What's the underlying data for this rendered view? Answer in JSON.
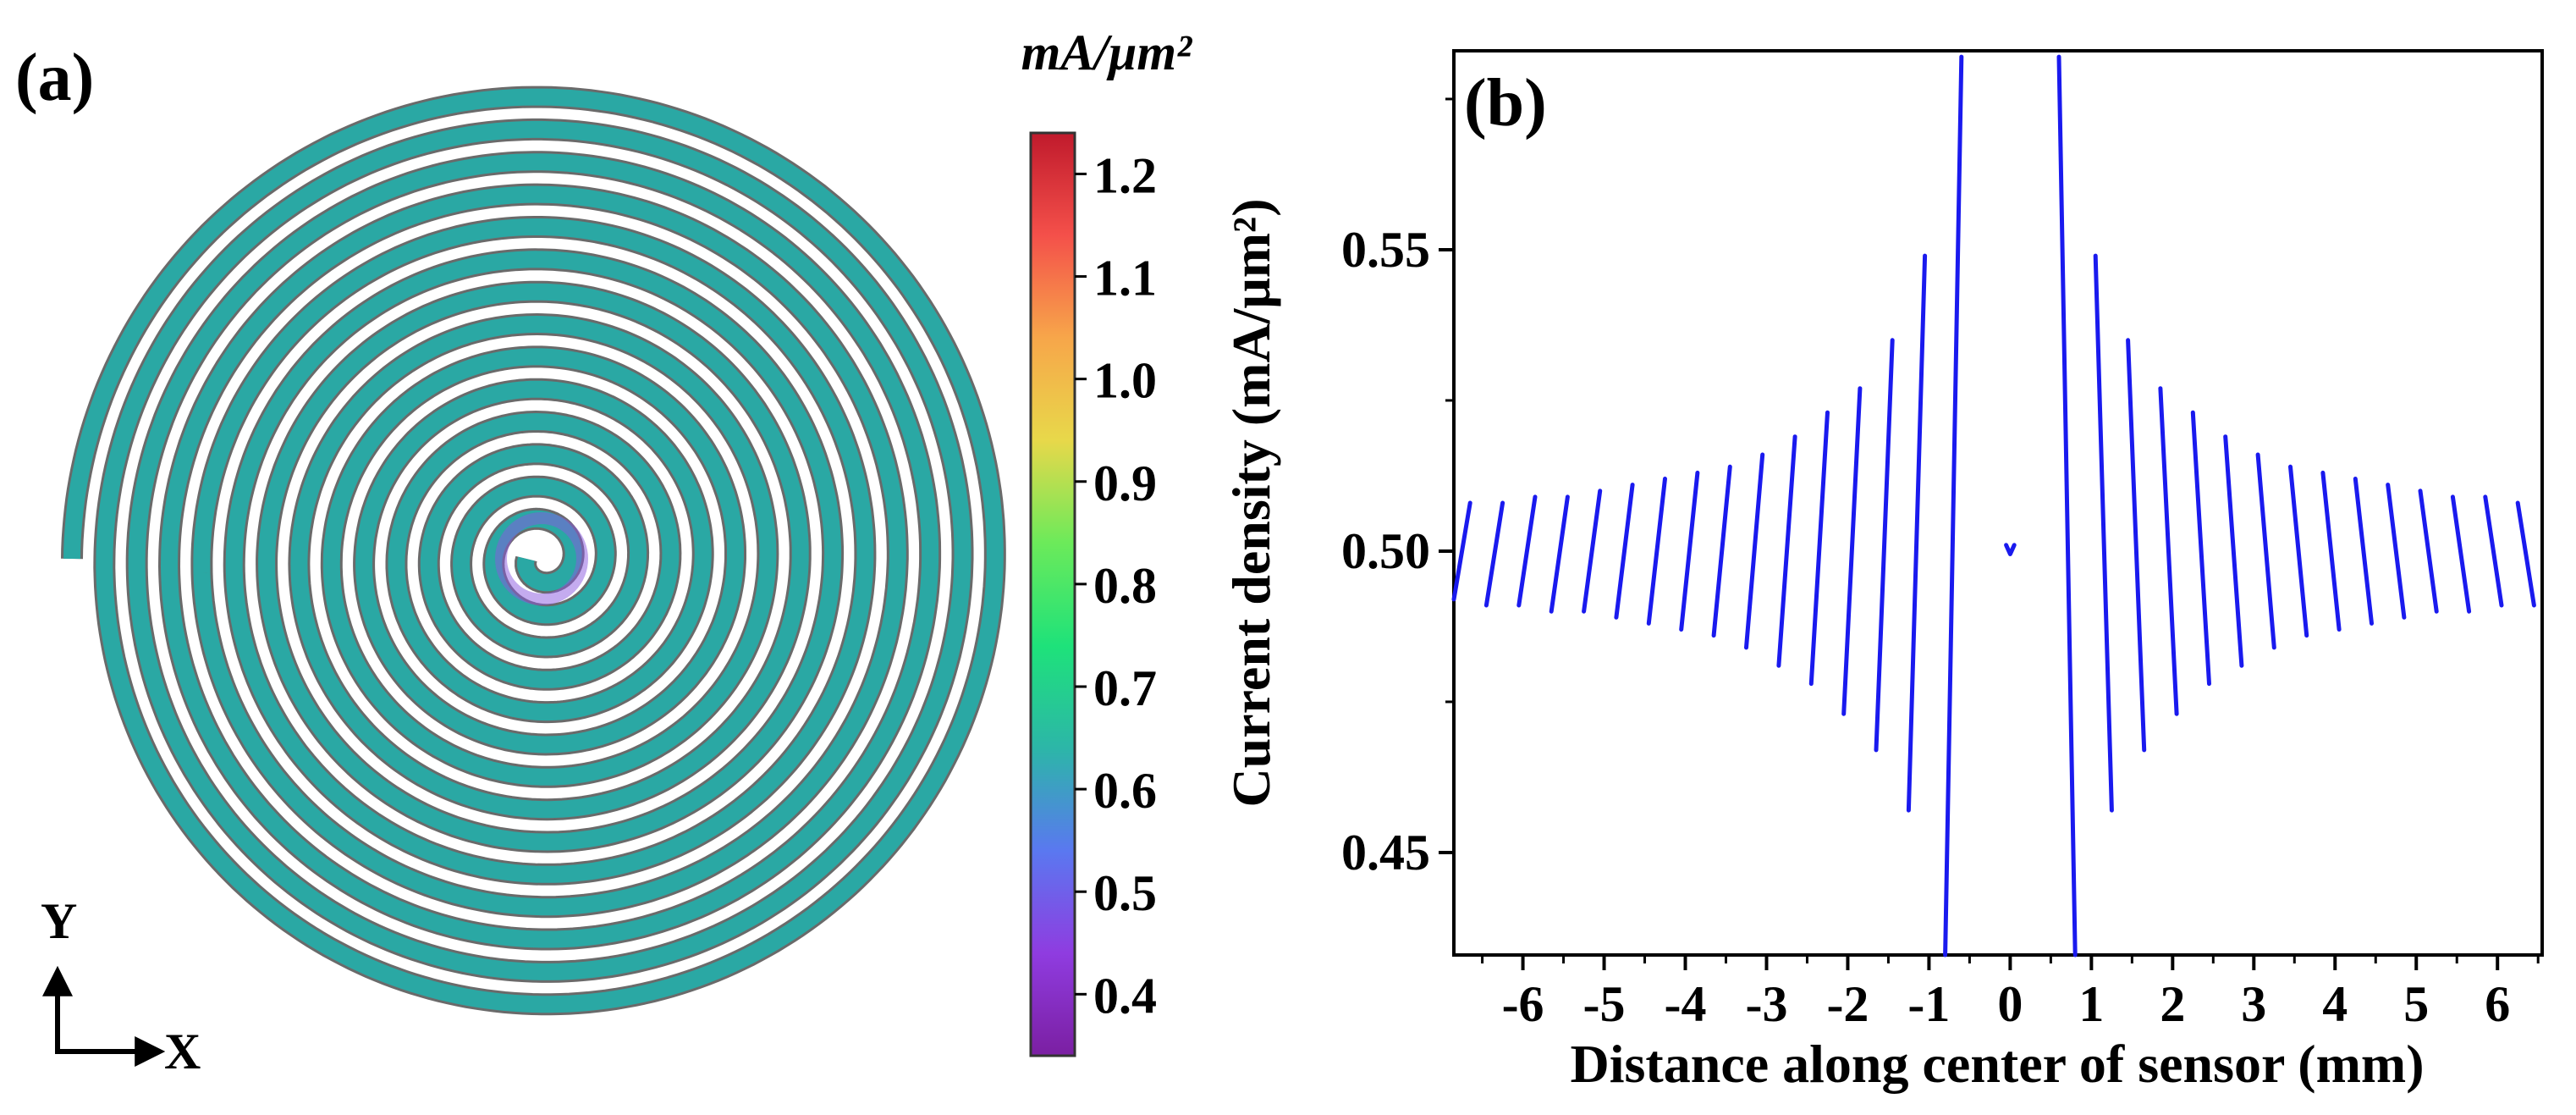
{
  "panel_a": {
    "label": "(a)",
    "colorbar": {
      "unit": "mA/μm²",
      "ticks": [
        "1.2",
        "1.1",
        "1.0",
        "0.9",
        "0.8",
        "0.7",
        "0.6",
        "0.5",
        "0.4"
      ],
      "min": 0.34,
      "max": 1.24,
      "colors": [
        "#7b1fa2",
        "#8f3ce0",
        "#5a78f0",
        "#2cb6a8",
        "#1ee27a",
        "#6cea5a",
        "#e8d84a",
        "#f7a64a",
        "#f4504a",
        "#c01a2c"
      ]
    },
    "axes": {
      "y": "Y",
      "x": "X"
    },
    "spiral": {
      "turns": 14,
      "fill_color": "#2aa8a4",
      "center_color": "#8a58e0"
    }
  },
  "chart_data": {
    "type": "line",
    "panel_label": "(b)",
    "title": "",
    "xlabel": "Distance along center of sensor (mm)",
    "ylabel": "Current density (mA/μm²)",
    "xlim": [
      -6.85,
      6.55
    ],
    "ylim": [
      0.433,
      0.583
    ],
    "xticks": [
      -6,
      -5,
      -4,
      -3,
      -2,
      -1,
      0,
      1,
      2,
      3,
      4,
      5,
      6
    ],
    "xtick_labels": [
      "-6",
      "-5",
      "-4",
      "-3",
      "-2",
      "-1",
      "0",
      "1",
      "2",
      "3",
      "4",
      "5",
      "6"
    ],
    "yticks": [
      0.45,
      0.5,
      0.55
    ],
    "ytick_labels": [
      "0.45",
      "0.50",
      "0.55"
    ],
    "series": [
      {
        "name": "Current density",
        "color": "#1a1aee",
        "segments": [
          [
            [
              -6.85,
              0.492
            ],
            [
              -6.65,
              0.508
            ]
          ],
          [
            [
              -6.45,
              0.491
            ],
            [
              -6.25,
              0.508
            ]
          ],
          [
            [
              -6.05,
              0.491
            ],
            [
              -5.85,
              0.509
            ]
          ],
          [
            [
              -5.65,
              0.49
            ],
            [
              -5.45,
              0.509
            ]
          ],
          [
            [
              -5.25,
              0.49
            ],
            [
              -5.05,
              0.51
            ]
          ],
          [
            [
              -4.85,
              0.489
            ],
            [
              -4.65,
              0.511
            ]
          ],
          [
            [
              -4.45,
              0.488
            ],
            [
              -4.25,
              0.512
            ]
          ],
          [
            [
              -4.05,
              0.487
            ],
            [
              -3.85,
              0.513
            ]
          ],
          [
            [
              -3.65,
              0.486
            ],
            [
              -3.45,
              0.514
            ]
          ],
          [
            [
              -3.25,
              0.484
            ],
            [
              -3.05,
              0.516
            ]
          ],
          [
            [
              -2.85,
              0.481
            ],
            [
              -2.65,
              0.519
            ]
          ],
          [
            [
              -2.45,
              0.478
            ],
            [
              -2.25,
              0.523
            ]
          ],
          [
            [
              -2.05,
              0.473
            ],
            [
              -1.85,
              0.527
            ]
          ],
          [
            [
              -1.65,
              0.467
            ],
            [
              -1.45,
              0.535
            ]
          ],
          [
            [
              -1.25,
              0.457
            ],
            [
              -1.05,
              0.549
            ]
          ],
          [
            [
              -0.8,
              0.433
            ],
            [
              -0.6,
              0.582
            ]
          ],
          [
            [
              -0.05,
              0.501
            ],
            [
              0.0,
              0.4995
            ],
            [
              0.05,
              0.501
            ]
          ],
          [
            [
              0.6,
              0.582
            ],
            [
              0.8,
              0.433
            ]
          ],
          [
            [
              1.05,
              0.549
            ],
            [
              1.25,
              0.457
            ]
          ],
          [
            [
              1.45,
              0.535
            ],
            [
              1.65,
              0.467
            ]
          ],
          [
            [
              1.85,
              0.527
            ],
            [
              2.05,
              0.473
            ]
          ],
          [
            [
              2.25,
              0.523
            ],
            [
              2.45,
              0.478
            ]
          ],
          [
            [
              2.65,
              0.519
            ],
            [
              2.85,
              0.481
            ]
          ],
          [
            [
              3.05,
              0.516
            ],
            [
              3.25,
              0.484
            ]
          ],
          [
            [
              3.45,
              0.514
            ],
            [
              3.65,
              0.486
            ]
          ],
          [
            [
              3.85,
              0.513
            ],
            [
              4.05,
              0.487
            ]
          ],
          [
            [
              4.25,
              0.512
            ],
            [
              4.45,
              0.488
            ]
          ],
          [
            [
              4.65,
              0.511
            ],
            [
              4.85,
              0.489
            ]
          ],
          [
            [
              5.05,
              0.51
            ],
            [
              5.25,
              0.49
            ]
          ],
          [
            [
              5.45,
              0.509
            ],
            [
              5.65,
              0.49
            ]
          ],
          [
            [
              5.85,
              0.509
            ],
            [
              6.05,
              0.491
            ]
          ],
          [
            [
              6.25,
              0.508
            ],
            [
              6.45,
              0.491
            ]
          ]
        ]
      }
    ]
  }
}
